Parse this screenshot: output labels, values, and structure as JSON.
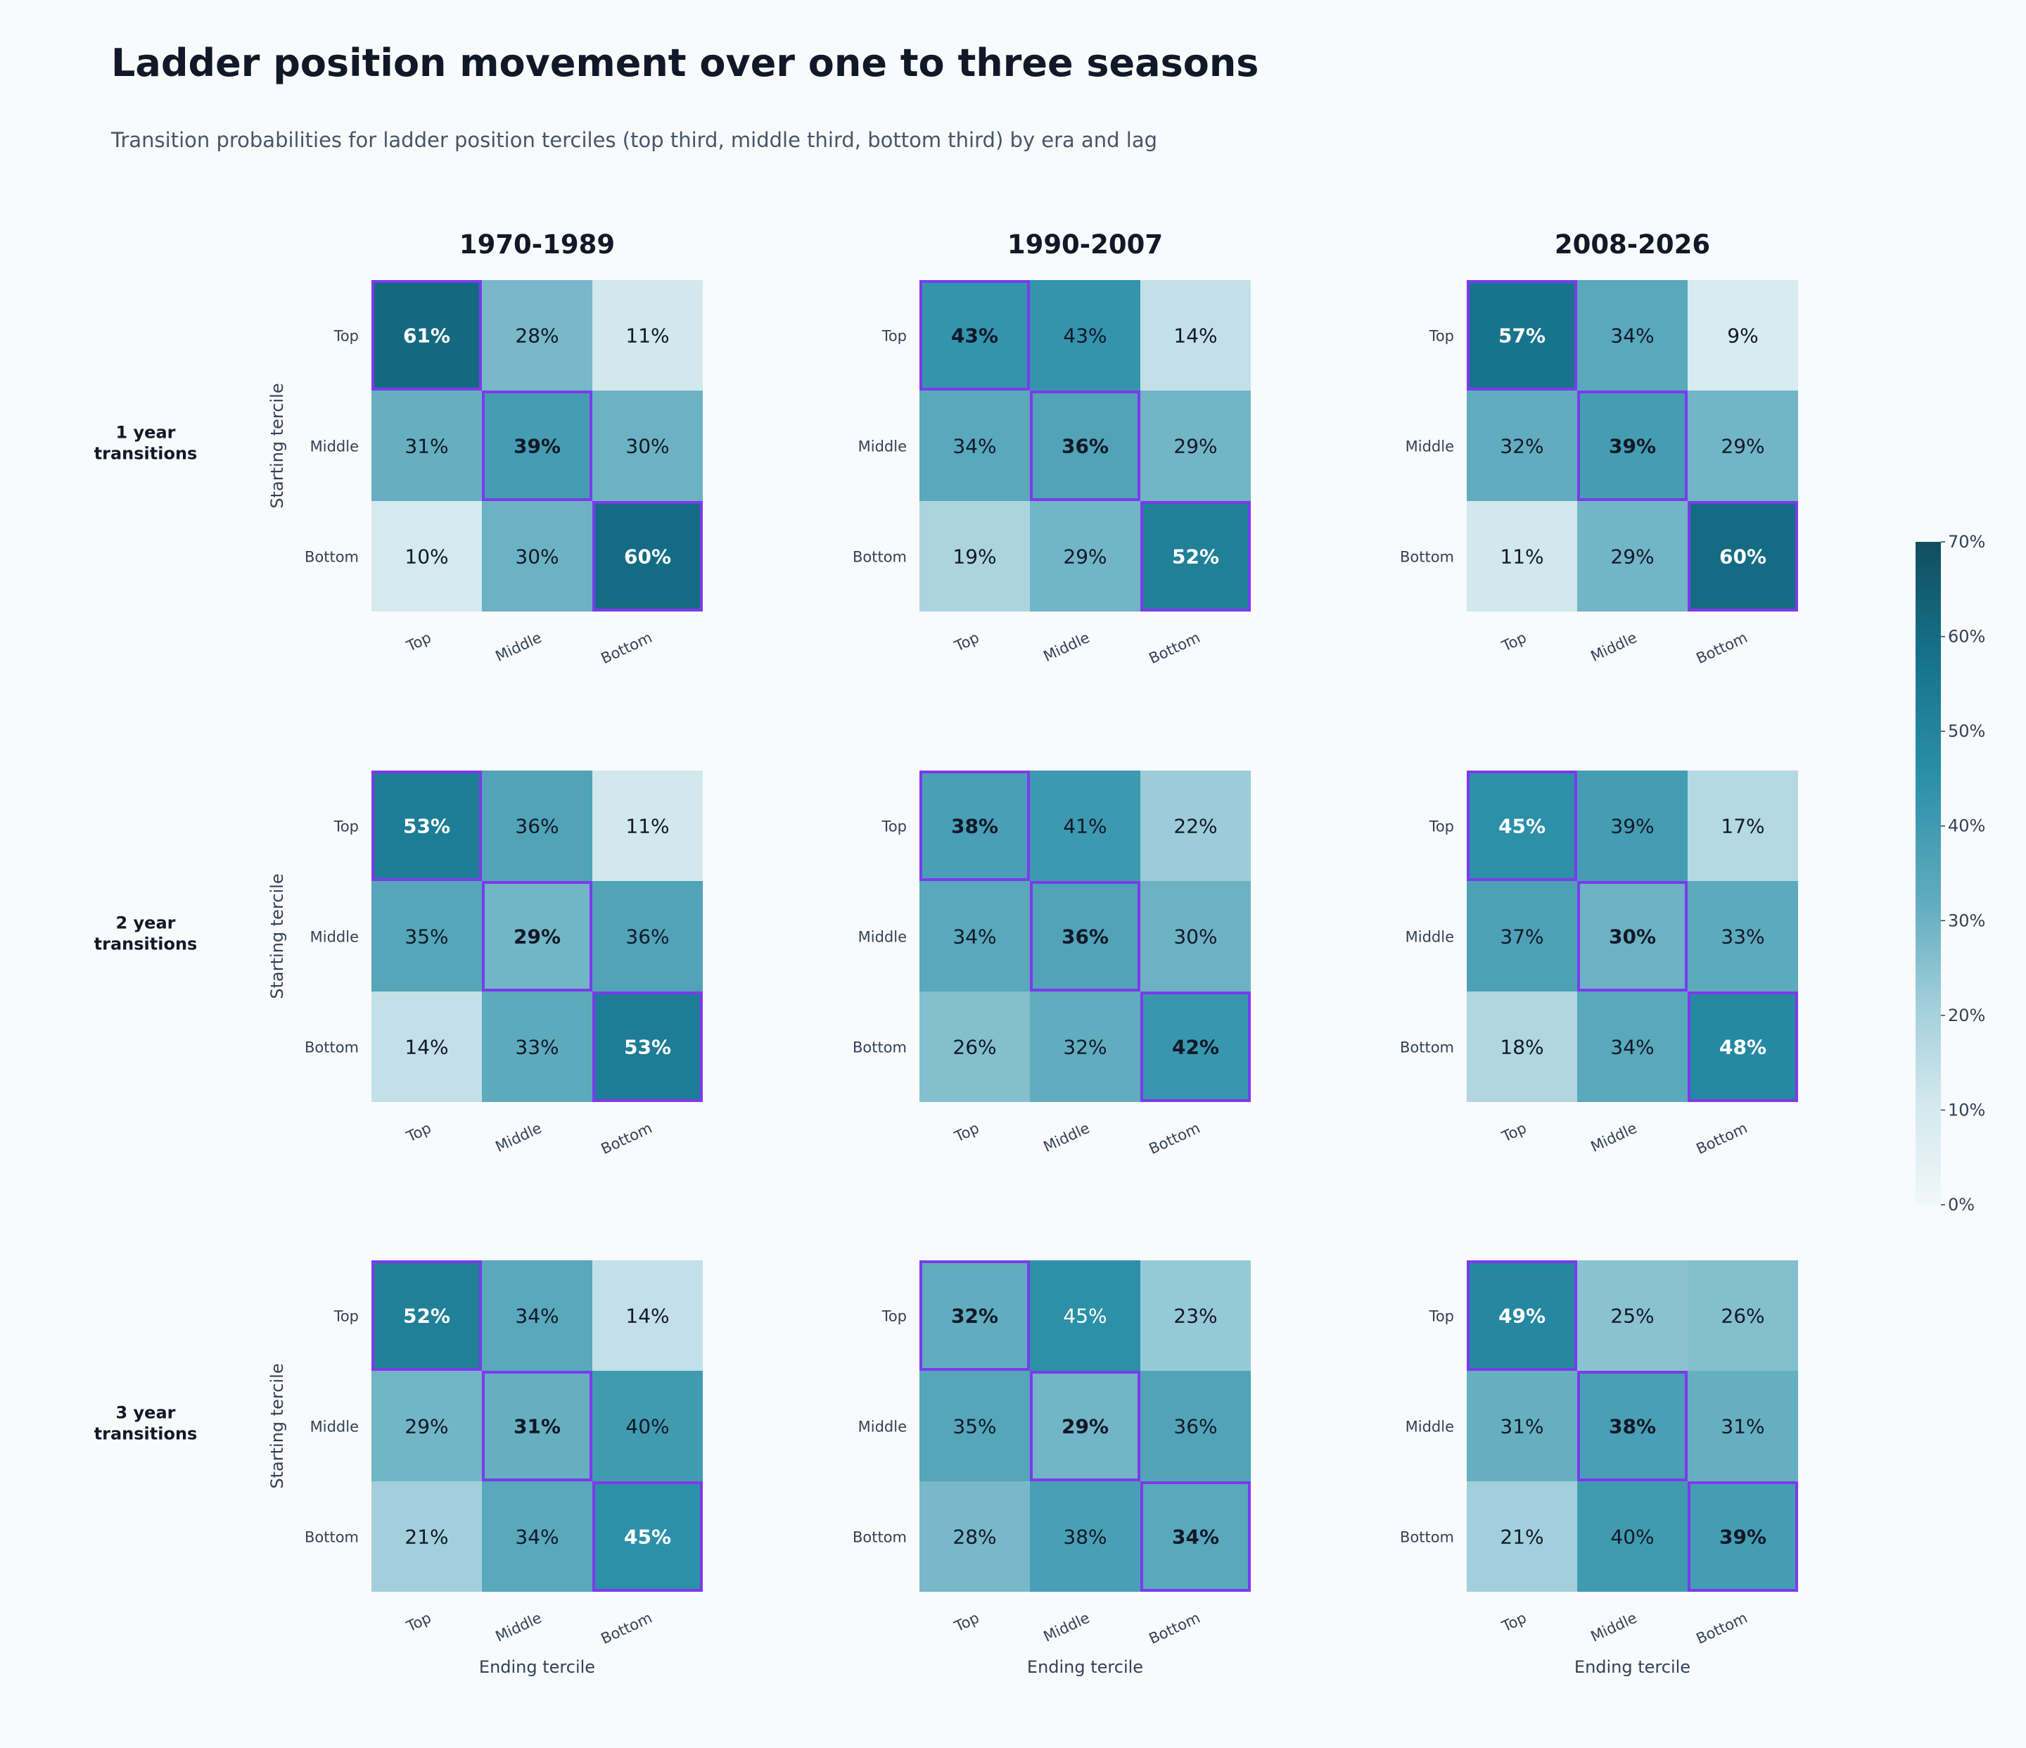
{
  "title": "Ladder position movement over one to three seasons",
  "subtitle": "Transition probabilities for ladder position terciles (top third, middle third, bottom third) by era and lag",
  "colors": {
    "diagonal_outline": "#7c3aed",
    "scale_low": "#f1f7f9",
    "scale_mid": "#2a8fa8",
    "scale_high": "#114e5f"
  },
  "chart_data": {
    "type": "heatmap",
    "columns": [
      "1970-1989",
      "1990-2007",
      "2008-2026"
    ],
    "rows": [
      "1 year\ntransitions",
      "2 year\ntransitions",
      "3 year\ntransitions"
    ],
    "y_categories": [
      "Top",
      "Middle",
      "Bottom"
    ],
    "x_categories": [
      "Top",
      "Middle",
      "Bottom"
    ],
    "ylabel": "Starting tercile",
    "xlabel": "Ending tercile",
    "colorbar": {
      "min": 0,
      "max": 70,
      "ticks": [
        "0%",
        "10%",
        "20%",
        "30%",
        "40%",
        "50%",
        "60%",
        "70%"
      ]
    },
    "panels": [
      [
        [
          [
            61,
            28,
            11
          ],
          [
            31,
            39,
            30
          ],
          [
            10,
            30,
            60
          ]
        ],
        [
          [
            43,
            43,
            14
          ],
          [
            34,
            36,
            29
          ],
          [
            19,
            29,
            52
          ]
        ],
        [
          [
            57,
            34,
            9
          ],
          [
            32,
            39,
            29
          ],
          [
            11,
            29,
            60
          ]
        ]
      ],
      [
        [
          [
            53,
            36,
            11
          ],
          [
            35,
            29,
            36
          ],
          [
            14,
            33,
            53
          ]
        ],
        [
          [
            38,
            41,
            22
          ],
          [
            34,
            36,
            30
          ],
          [
            26,
            32,
            42
          ]
        ],
        [
          [
            45,
            39,
            17
          ],
          [
            37,
            30,
            33
          ],
          [
            18,
            34,
            48
          ]
        ]
      ],
      [
        [
          [
            52,
            34,
            14
          ],
          [
            29,
            31,
            40
          ],
          [
            21,
            34,
            45
          ]
        ],
        [
          [
            32,
            45,
            23
          ],
          [
            35,
            29,
            36
          ],
          [
            28,
            38,
            34
          ]
        ],
        [
          [
            49,
            25,
            26
          ],
          [
            31,
            38,
            31
          ],
          [
            21,
            40,
            39
          ]
        ]
      ]
    ]
  }
}
